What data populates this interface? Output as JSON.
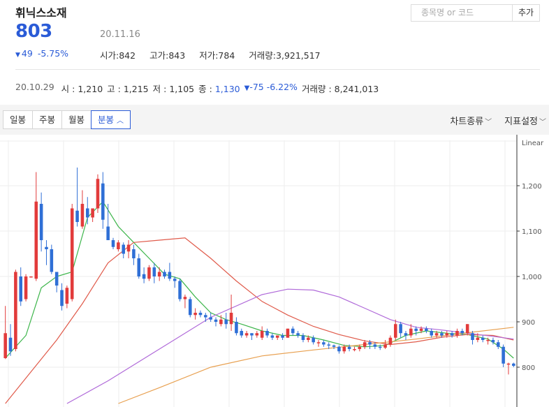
{
  "stock": {
    "name": "휘닉스소재",
    "price": "803",
    "date": "20.11.16",
    "change": "49",
    "change_pct": "-5.75%",
    "open_label": "시가",
    "open": "842",
    "high_label": "고가",
    "high": "843",
    "low_label": "저가",
    "low": "784",
    "volume_label": "거래량",
    "volume": "3,921,517"
  },
  "search": {
    "placeholder": "종목명 or 코드",
    "add_label": "추가"
  },
  "prev": {
    "date": "20.10.29",
    "open_label": "시",
    "open": "1,210",
    "high_label": "고",
    "high": "1,215",
    "low_label": "저",
    "low": "1,105",
    "close_label": "종",
    "close": "1,130",
    "change": "-75",
    "change_pct": "-6.22%",
    "volume_label": "거래량",
    "volume": "8,241,013"
  },
  "toolbar": {
    "tabs": [
      "일봉",
      "주봉",
      "월봉",
      "분봉"
    ],
    "active_tab": 3,
    "chart_type_label": "차트종류",
    "indicator_label": "지표설정"
  },
  "colors": {
    "up": "#e23b3b",
    "down": "#2f6fd6",
    "ma5": "#3cb54a",
    "ma20": "#e05a4a",
    "ma60": "#b06ad9",
    "ma120": "#e8a050",
    "accent": "#2a5bd7"
  },
  "chart_data": {
    "type": "candlestick",
    "scale_label": "Linear",
    "y_ticks": [
      800,
      900,
      1000,
      1100,
      1200
    ],
    "ylim": [
      715,
      1320
    ],
    "candles": [
      [
        820,
        875,
        935,
        818
      ],
      [
        865,
        835,
        895,
        825
      ],
      [
        840,
        1010,
        1015,
        835
      ],
      [
        1000,
        945,
        1020,
        935
      ],
      [
        950,
        1000,
        1005,
        945
      ],
      [
        1000,
        1000,
        1000,
        1000
      ],
      [
        995,
        1165,
        1230,
        990
      ],
      [
        1160,
        1080,
        1185,
        1055
      ],
      [
        1065,
        1060,
        1080,
        1025
      ],
      [
        1060,
        1010,
        1070,
        1005
      ],
      [
        1010,
        980,
        1010,
        965
      ],
      [
        970,
        935,
        985,
        925
      ],
      [
        940,
        975,
        980,
        930
      ],
      [
        950,
        1150,
        1160,
        945
      ],
      [
        1145,
        1120,
        1240,
        1110
      ],
      [
        1110,
        1160,
        1190,
        1105
      ],
      [
        1150,
        1130,
        1175,
        1115
      ],
      [
        1130,
        1150,
        1150,
        1120
      ],
      [
        1150,
        1215,
        1225,
        1140
      ],
      [
        1205,
        1125,
        1230,
        1105
      ],
      [
        1110,
        1080,
        1160,
        1090
      ],
      [
        1080,
        1065,
        1085,
        1060
      ],
      [
        1060,
        1075,
        1080,
        1055
      ],
      [
        1070,
        1050,
        1075,
        1040
      ],
      [
        1055,
        1070,
        1080,
        1040
      ],
      [
        1060,
        1040,
        1070,
        1025
      ],
      [
        1040,
        1000,
        1050,
        995
      ],
      [
        1005,
        995,
        1020,
        985
      ],
      [
        995,
        1020,
        1025,
        990
      ],
      [
        1020,
        1000,
        1030,
        985
      ],
      [
        1000,
        1010,
        1020,
        990
      ],
      [
        1010,
        1000,
        1015,
        995
      ],
      [
        1010,
        995,
        1030,
        990
      ],
      [
        995,
        990,
        1000,
        975
      ],
      [
        990,
        950,
        995,
        945
      ],
      [
        950,
        955,
        960,
        930
      ],
      [
        950,
        915,
        955,
        910
      ],
      [
        915,
        920,
        930,
        905
      ],
      [
        920,
        915,
        925,
        910
      ],
      [
        915,
        910,
        920,
        900
      ],
      [
        910,
        905,
        920,
        900
      ],
      [
        905,
        900,
        910,
        890
      ],
      [
        895,
        905,
        915,
        890
      ],
      [
        905,
        895,
        920,
        885
      ],
      [
        895,
        920,
        960,
        880
      ],
      [
        900,
        875,
        910,
        870
      ],
      [
        880,
        870,
        885,
        865
      ],
      [
        870,
        875,
        880,
        865
      ],
      [
        875,
        870,
        875,
        860
      ],
      [
        870,
        875,
        880,
        865
      ],
      [
        865,
        880,
        890,
        860
      ],
      [
        880,
        870,
        885,
        865
      ],
      [
        870,
        865,
        875,
        860
      ],
      [
        865,
        870,
        870,
        860
      ],
      [
        870,
        865,
        875,
        860
      ],
      [
        865,
        885,
        885,
        865
      ],
      [
        885,
        875,
        890,
        870
      ],
      [
        875,
        870,
        880,
        865
      ],
      [
        870,
        860,
        875,
        855
      ],
      [
        860,
        865,
        870,
        855
      ],
      [
        865,
        855,
        870,
        850
      ],
      [
        855,
        855,
        860,
        845
      ],
      [
        855,
        850,
        860,
        845
      ],
      [
        850,
        848,
        855,
        840
      ],
      [
        848,
        845,
        850,
        840
      ],
      [
        845,
        835,
        848,
        830
      ],
      [
        835,
        845,
        850,
        830
      ],
      [
        845,
        840,
        850,
        835
      ],
      [
        840,
        840,
        845,
        835
      ],
      [
        840,
        845,
        850,
        835
      ],
      [
        845,
        855,
        860,
        840
      ],
      [
        855,
        850,
        860,
        840
      ],
      [
        850,
        845,
        855,
        840
      ],
      [
        845,
        843,
        850,
        838
      ],
      [
        843,
        850,
        860,
        840
      ],
      [
        850,
        865,
        870,
        845
      ],
      [
        865,
        895,
        905,
        860
      ],
      [
        895,
        875,
        900,
        865
      ],
      [
        875,
        870,
        880,
        860
      ],
      [
        870,
        885,
        895,
        865
      ],
      [
        885,
        880,
        890,
        870
      ],
      [
        880,
        885,
        890,
        875
      ],
      [
        885,
        880,
        890,
        875
      ],
      [
        880,
        870,
        885,
        865
      ],
      [
        870,
        875,
        880,
        865
      ],
      [
        875,
        870,
        880,
        865
      ],
      [
        870,
        875,
        880,
        865
      ],
      [
        875,
        870,
        880,
        865
      ],
      [
        870,
        880,
        885,
        865
      ],
      [
        880,
        875,
        885,
        870
      ],
      [
        875,
        895,
        895,
        870
      ],
      [
        875,
        860,
        880,
        850
      ],
      [
        860,
        865,
        875,
        855
      ],
      [
        865,
        860,
        870,
        855
      ],
      [
        860,
        860,
        865,
        850
      ],
      [
        860,
        855,
        865,
        850
      ],
      [
        855,
        845,
        860,
        840
      ],
      [
        845,
        808,
        850,
        800
      ],
      [
        808,
        808,
        810,
        784
      ],
      [
        808,
        803,
        810,
        800
      ]
    ],
    "ma_lines": [
      {
        "name": "MA5",
        "color": "ma5",
        "points": [
          [
            0,
            820
          ],
          [
            4,
            870
          ],
          [
            7,
            975
          ],
          [
            10,
            1000
          ],
          [
            13,
            1010
          ],
          [
            16,
            1130
          ],
          [
            19,
            1165
          ],
          [
            22,
            1110
          ],
          [
            25,
            1075
          ],
          [
            28,
            1040
          ],
          [
            31,
            1005
          ],
          [
            34,
            995
          ],
          [
            37,
            955
          ],
          [
            40,
            920
          ],
          [
            43,
            905
          ],
          [
            46,
            895
          ],
          [
            50,
            880
          ],
          [
            54,
            870
          ],
          [
            58,
            870
          ],
          [
            62,
            860
          ],
          [
            66,
            848
          ],
          [
            70,
            845
          ],
          [
            74,
            848
          ],
          [
            78,
            870
          ],
          [
            82,
            880
          ],
          [
            86,
            875
          ],
          [
            90,
            872
          ],
          [
            94,
            862
          ],
          [
            97,
            840
          ],
          [
            99,
            820
          ]
        ]
      },
      {
        "name": "MA20",
        "color": "ma20",
        "points": [
          [
            0,
            720
          ],
          [
            5,
            790
          ],
          [
            10,
            860
          ],
          [
            15,
            940
          ],
          [
            20,
            1030
          ],
          [
            25,
            1075
          ],
          [
            30,
            1080
          ],
          [
            35,
            1085
          ],
          [
            40,
            1040
          ],
          [
            45,
            990
          ],
          [
            50,
            945
          ],
          [
            55,
            915
          ],
          [
            60,
            890
          ],
          [
            65,
            872
          ],
          [
            70,
            858
          ],
          [
            75,
            850
          ],
          [
            80,
            856
          ],
          [
            85,
            866
          ],
          [
            90,
            872
          ],
          [
            95,
            870
          ],
          [
            99,
            860
          ]
        ]
      },
      {
        "name": "MA60",
        "color": "ma60",
        "points": [
          [
            12,
            720
          ],
          [
            20,
            770
          ],
          [
            30,
            840
          ],
          [
            40,
            910
          ],
          [
            50,
            960
          ],
          [
            55,
            972
          ],
          [
            60,
            970
          ],
          [
            65,
            955
          ],
          [
            70,
            930
          ],
          [
            75,
            905
          ],
          [
            80,
            888
          ],
          [
            85,
            882
          ],
          [
            90,
            875
          ],
          [
            95,
            868
          ],
          [
            99,
            862
          ]
        ]
      },
      {
        "name": "MA120",
        "color": "ma120",
        "points": [
          [
            22,
            720
          ],
          [
            30,
            755
          ],
          [
            40,
            800
          ],
          [
            50,
            825
          ],
          [
            60,
            838
          ],
          [
            70,
            850
          ],
          [
            80,
            862
          ],
          [
            90,
            876
          ],
          [
            99,
            888
          ]
        ]
      }
    ]
  }
}
